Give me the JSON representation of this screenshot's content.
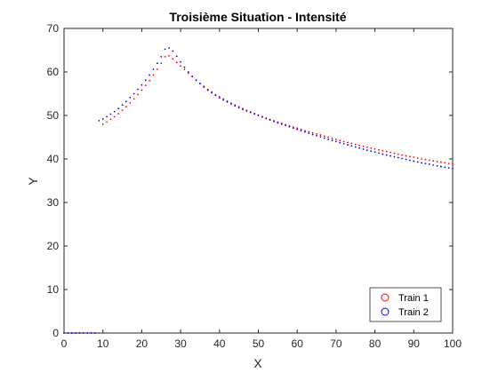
{
  "chart_data": {
    "type": "scatter",
    "title": "Troisième Situation - Intensité",
    "xlabel": "X",
    "ylabel": "Y",
    "xlim": [
      0,
      100
    ],
    "ylim": [
      0,
      70
    ],
    "xticks": [
      0,
      10,
      20,
      30,
      40,
      50,
      60,
      70,
      80,
      90,
      100
    ],
    "yticks": [
      0,
      10,
      20,
      30,
      40,
      50,
      60,
      70
    ],
    "xtick_labels": [
      "0",
      "10",
      "20",
      "30",
      "40",
      "50",
      "60",
      "70",
      "80",
      "90",
      "100"
    ],
    "ytick_labels": [
      "0",
      "10",
      "20",
      "30",
      "40",
      "50",
      "60",
      "70"
    ],
    "grid": false,
    "legend_position": "bottom-right",
    "marker": "point",
    "series": [
      {
        "name": "Train 1",
        "color": "#ff0000",
        "legend_marker": "circle",
        "points": [
          [
            0,
            0
          ],
          [
            1,
            0
          ],
          [
            2,
            0
          ],
          [
            3,
            0
          ],
          [
            4,
            0
          ],
          [
            5,
            0
          ],
          [
            6,
            0
          ],
          [
            7,
            0
          ],
          [
            8,
            0
          ],
          [
            9,
            0
          ],
          [
            10,
            48.0
          ],
          [
            11,
            48.5
          ],
          [
            12,
            49.1
          ],
          [
            13,
            49.7
          ],
          [
            14,
            50.4
          ],
          [
            15,
            51.2
          ],
          [
            16,
            52.0
          ],
          [
            17,
            52.9
          ],
          [
            18,
            53.8
          ],
          [
            19,
            54.8
          ],
          [
            20,
            55.8
          ],
          [
            21,
            56.9
          ],
          [
            22,
            58.0
          ],
          [
            23,
            59.3
          ],
          [
            24,
            60.6
          ],
          [
            25,
            62.0
          ],
          [
            26,
            63.5
          ],
          [
            27,
            63.7
          ],
          [
            28,
            63.0
          ],
          [
            29,
            62.2
          ],
          [
            30,
            61.4
          ],
          [
            31,
            60.6
          ],
          [
            32,
            59.7
          ],
          [
            33,
            58.9
          ],
          [
            34,
            58.1
          ],
          [
            35,
            57.4
          ],
          [
            36,
            56.7
          ],
          [
            37,
            56.0
          ],
          [
            38,
            55.4
          ],
          [
            39,
            54.8
          ],
          [
            40,
            54.3
          ],
          [
            42,
            53.3
          ],
          [
            44,
            52.4
          ],
          [
            46,
            51.6
          ],
          [
            48,
            50.8
          ],
          [
            50,
            50.1
          ],
          [
            52,
            49.4
          ],
          [
            54,
            48.8
          ],
          [
            56,
            48.2
          ],
          [
            58,
            47.6
          ],
          [
            60,
            47.1
          ],
          [
            62,
            46.5
          ],
          [
            64,
            46.0
          ],
          [
            66,
            45.5
          ],
          [
            68,
            45.0
          ],
          [
            70,
            44.5
          ],
          [
            72,
            44.0
          ],
          [
            74,
            43.6
          ],
          [
            76,
            43.1
          ],
          [
            78,
            42.7
          ],
          [
            80,
            42.3
          ],
          [
            82,
            41.9
          ],
          [
            84,
            41.5
          ],
          [
            86,
            41.1
          ],
          [
            88,
            40.7
          ],
          [
            90,
            40.4
          ],
          [
            92,
            40.0
          ],
          [
            94,
            39.7
          ],
          [
            96,
            39.4
          ],
          [
            98,
            39.1
          ],
          [
            100,
            38.8
          ]
        ]
      },
      {
        "name": "Train 2",
        "color": "#0000ff",
        "legend_marker": "circle",
        "points": [
          [
            0,
            0
          ],
          [
            1,
            0
          ],
          [
            2,
            0
          ],
          [
            3,
            0
          ],
          [
            4,
            0
          ],
          [
            5,
            0
          ],
          [
            6,
            0
          ],
          [
            7,
            0
          ],
          [
            8,
            0
          ],
          [
            9,
            48.8
          ],
          [
            10,
            49.2
          ],
          [
            11,
            49.7
          ],
          [
            12,
            50.3
          ],
          [
            13,
            50.9
          ],
          [
            14,
            51.6
          ],
          [
            15,
            52.4
          ],
          [
            16,
            53.2
          ],
          [
            17,
            54.1
          ],
          [
            18,
            55.0
          ],
          [
            19,
            56.0
          ],
          [
            20,
            57.0
          ],
          [
            21,
            58.1
          ],
          [
            22,
            59.3
          ],
          [
            23,
            60.6
          ],
          [
            24,
            62.0
          ],
          [
            25,
            63.5
          ],
          [
            26,
            65.2
          ],
          [
            27,
            65.5
          ],
          [
            28,
            64.8
          ],
          [
            29,
            63.6
          ],
          [
            30,
            62.3
          ],
          [
            31,
            61.1
          ],
          [
            32,
            60.0
          ],
          [
            33,
            59.0
          ],
          [
            34,
            58.1
          ],
          [
            35,
            57.3
          ],
          [
            36,
            56.5
          ],
          [
            37,
            55.8
          ],
          [
            38,
            55.2
          ],
          [
            39,
            54.6
          ],
          [
            40,
            54.0
          ],
          [
            42,
            53.1
          ],
          [
            44,
            52.2
          ],
          [
            46,
            51.4
          ],
          [
            48,
            50.7
          ],
          [
            50,
            50.0
          ],
          [
            52,
            49.3
          ],
          [
            54,
            48.6
          ],
          [
            56,
            48.0
          ],
          [
            58,
            47.4
          ],
          [
            60,
            46.8
          ],
          [
            62,
            46.2
          ],
          [
            64,
            45.6
          ],
          [
            66,
            45.1
          ],
          [
            68,
            44.5
          ],
          [
            70,
            44.0
          ],
          [
            72,
            43.5
          ],
          [
            74,
            43.0
          ],
          [
            76,
            42.5
          ],
          [
            78,
            42.0
          ],
          [
            80,
            41.6
          ],
          [
            82,
            41.1
          ],
          [
            84,
            40.7
          ],
          [
            86,
            40.3
          ],
          [
            88,
            39.9
          ],
          [
            90,
            39.5
          ],
          [
            92,
            39.1
          ],
          [
            94,
            38.8
          ],
          [
            96,
            38.4
          ],
          [
            98,
            38.1
          ],
          [
            100,
            37.8
          ]
        ]
      }
    ]
  }
}
